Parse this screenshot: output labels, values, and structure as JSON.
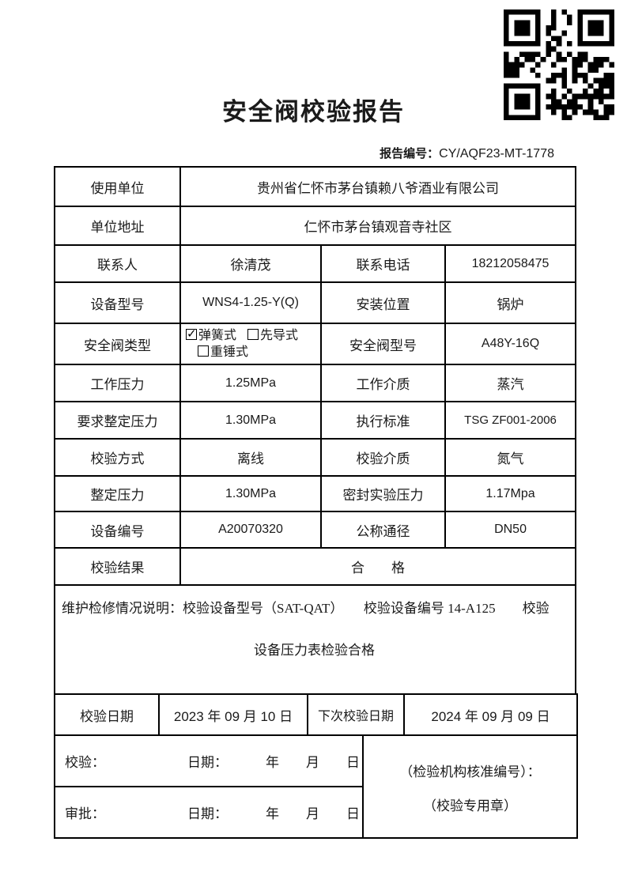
{
  "colors": {
    "border": "#000000",
    "text": "#1a1a1a",
    "background": "#ffffff"
  },
  "header": {
    "title": "安全阀校验报告",
    "report_no_label": "报告编号：",
    "report_no_value": "CY/AQF23-MT-1778",
    "qr_icon": "qr-code"
  },
  "table": {
    "row_use_unit": {
      "label": "使用单位",
      "value": "贵州省仁怀市茅台镇赖八爷酒业有限公司"
    },
    "row_address": {
      "label": "单位地址",
      "value": "仁怀市茅台镇观音寺社区"
    },
    "row_contact": {
      "l1": "联系人",
      "v1": "徐清茂",
      "l2": "联系电话",
      "v2": "18212058475"
    },
    "row_device_model": {
      "l1": "设备型号",
      "v1": "WNS4-1.25-Y(Q)",
      "l2": "安装位置",
      "v2": "锅炉"
    },
    "row_valve_type": {
      "label": "安全阀类型",
      "options": [
        {
          "checked": true,
          "text": "弹簧式"
        },
        {
          "checked": false,
          "text": "先导式"
        },
        {
          "checked": false,
          "text": "重锤式"
        }
      ],
      "l2": "安全阀型号",
      "v2": "A48Y-16Q"
    },
    "row_work_pressure": {
      "l1": "工作压力",
      "v1": "1.25MPa",
      "l2": "工作介质",
      "v2": "蒸汽"
    },
    "row_req_pressure": {
      "l1": "要求整定压力",
      "v1": "1.30MPa",
      "l2": "执行标准",
      "v2": "TSG ZF001-2006"
    },
    "row_method": {
      "l1": "校验方式",
      "v1": "离线",
      "l2": "校验介质",
      "v2": "氮气"
    },
    "row_set_pressure": {
      "l1": "整定压力",
      "v1": "1.30MPa",
      "l2": "密封实验压力",
      "v2": "1.17Mpa"
    },
    "row_device_no": {
      "l1": "设备编号",
      "v1": "A20070320",
      "l2": "公称通径",
      "v2": "DN50"
    },
    "row_result": {
      "label": "校验结果",
      "value": "合        格"
    },
    "row_remark": {
      "line1": "维护检修情况说明：校验设备型号（SAT-QAT）　　校验设备编号 14-A125　　校验",
      "line2": "设备压力表检验合格"
    },
    "row_dates": {
      "l1": "校验日期",
      "v1": "2023 年 09 月 10 日",
      "l2": "下次校验日期",
      "v2": "2024 年 09 月 09 日"
    },
    "row_sign1": {
      "label": "校验：",
      "date_label": "日期：",
      "ymd": "年　　月　　日"
    },
    "row_sign2": {
      "label": "审批：",
      "date_label": "日期：",
      "ymd": "年　　月　　日"
    },
    "stamp_cell": {
      "line1": "（检验机构核准编号）：",
      "line2": "（校验专用章）"
    }
  }
}
